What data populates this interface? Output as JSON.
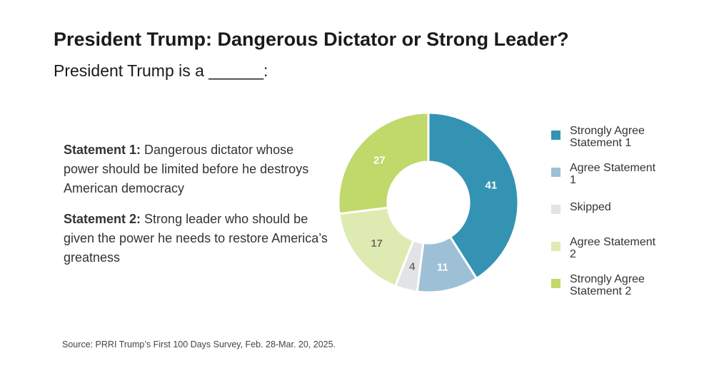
{
  "header": {
    "title": "President Trump: Dangerous Dictator or Strong Leader?",
    "subtitle": "President Trump is a ______:"
  },
  "statements": [
    {
      "label": "Statement 1:",
      "text": "Dangerous dictator whose power should be limited before he destroys American democracy"
    },
    {
      "label": "Statement 2:",
      "text": "Strong leader who should be given the power he needs to restore America’s greatness"
    }
  ],
  "chart_data": {
    "type": "pie",
    "subtype": "donut",
    "title": "President Trump: Dangerous Dictator or Strong Leader?",
    "categories": [
      "Strongly Agree Statement 1",
      "Agree Statement 1",
      "Skipped",
      "Agree Statement 2",
      "Strongly Agree Statement 2"
    ],
    "values": [
      41,
      11,
      4,
      17,
      27
    ],
    "data_labels": [
      "41",
      "11",
      "4",
      "17",
      "27"
    ],
    "colors": [
      "#3493b3",
      "#9dc0d6",
      "#e2e3e5",
      "#ddebb2",
      "#c1d86a"
    ],
    "label_colors": [
      "#ffffff",
      "#ffffff",
      "#7a6f69",
      "#7a6f69",
      "#ffffff"
    ],
    "legend_position": "right"
  },
  "legend": [
    {
      "label": "Strongly Agree Statement 1",
      "color": "#3493b3"
    },
    {
      "label": "Agree Statement 1",
      "color": "#9dc0d6"
    },
    {
      "label": "Skipped",
      "color": "#e2e3e5"
    },
    {
      "label": "Agree Statement 2",
      "color": "#ddebb2"
    },
    {
      "label": "Strongly Agree Statement 2",
      "color": "#c1d86a"
    }
  ],
  "source": "Source: PRRI Trump’s First 100 Days Survey, Feb. 28-Mar. 20, 2025."
}
